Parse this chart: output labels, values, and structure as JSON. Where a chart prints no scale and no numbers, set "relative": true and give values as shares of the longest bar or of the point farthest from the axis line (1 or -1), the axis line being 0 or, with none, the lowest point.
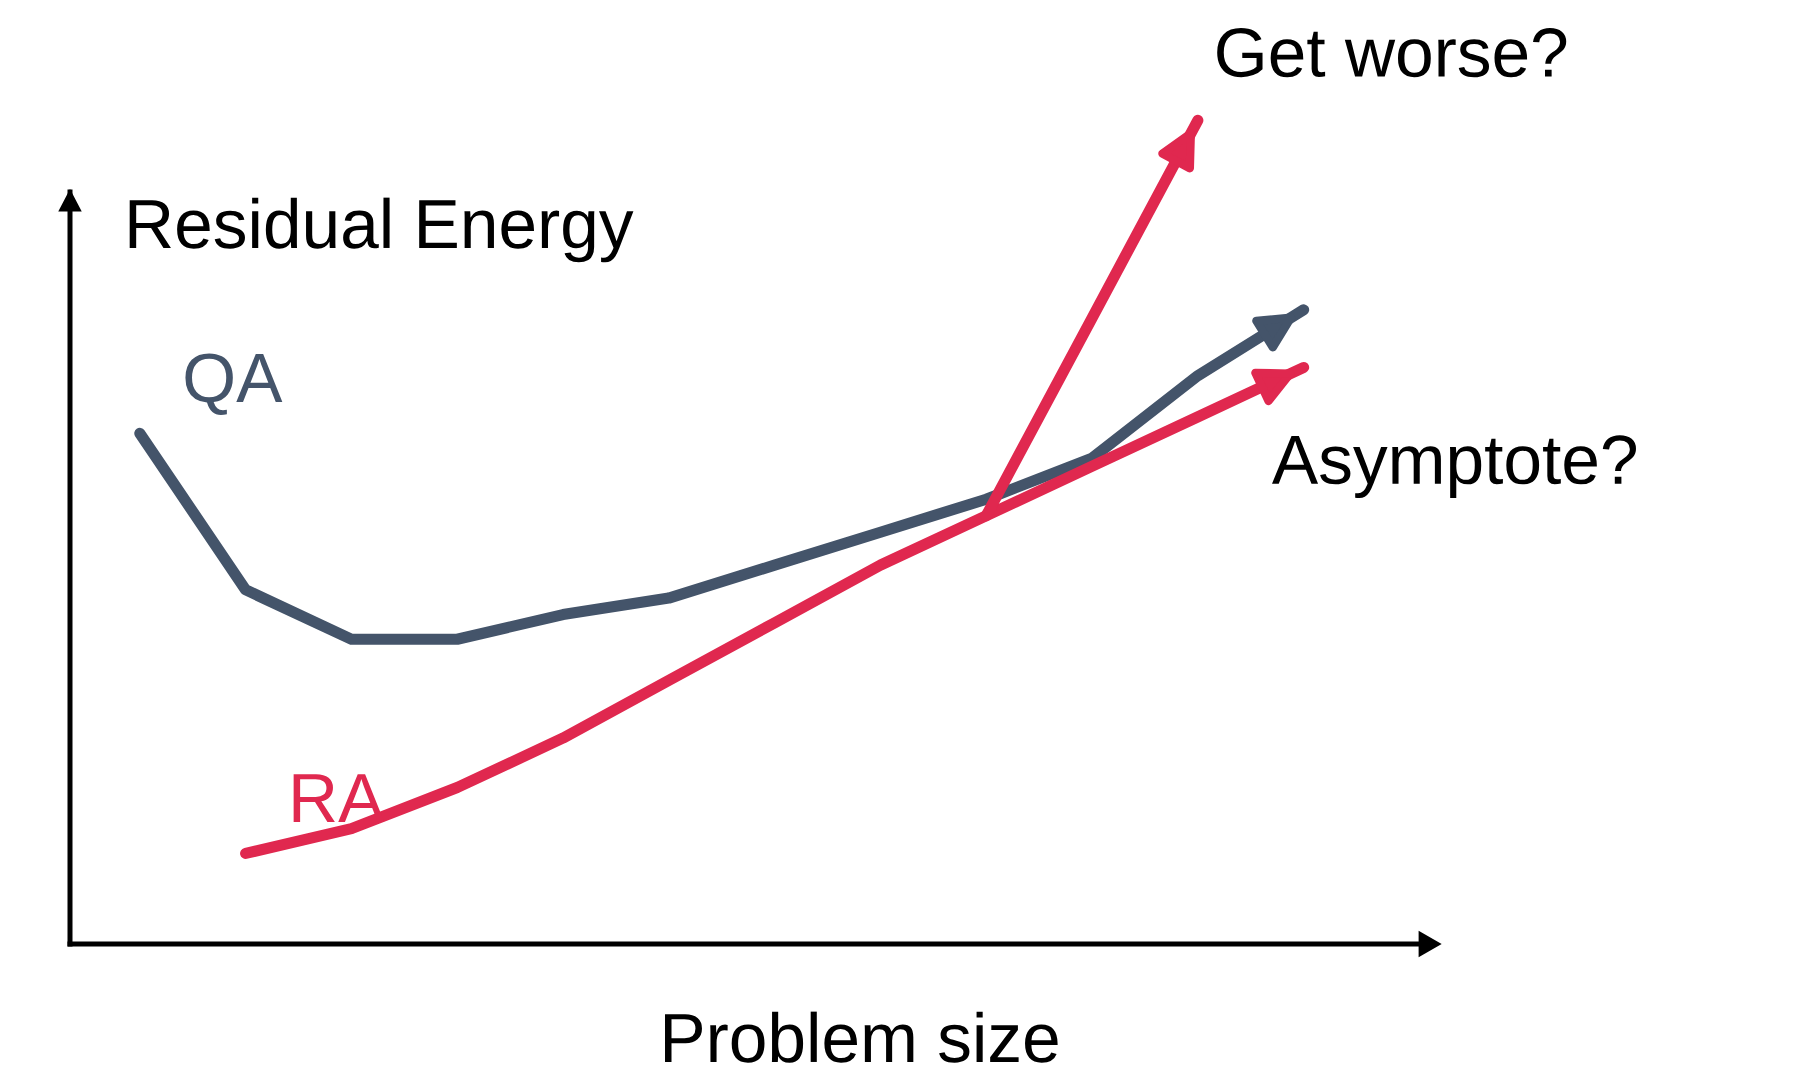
{
  "chart_data": {
    "type": "line",
    "relative": true,
    "xlabel": "Problem size",
    "ylabel": "Residual Energy",
    "categories": [
      null,
      null,
      null,
      null,
      null,
      null,
      null,
      null,
      null,
      null,
      null,
      null
    ],
    "series": [
      {
        "name": "QA",
        "color": "#44546a",
        "values": [
          0.62,
          0.43,
          0.37,
          0.37,
          0.4,
          0.42,
          0.46,
          0.5,
          0.54,
          0.59,
          0.69,
          0.77
        ]
      },
      {
        "name": "RA",
        "color": "#e0284f",
        "values": [
          null,
          0.11,
          0.14,
          0.19,
          0.25,
          0.32,
          0.39,
          0.46,
          0.52,
          0.58,
          0.64,
          0.7
        ]
      },
      {
        "name": "Get worse?",
        "color": "#e0284f",
        "values": [
          null,
          null,
          null,
          null,
          null,
          null,
          null,
          null,
          0.52,
          0.76,
          1.0,
          null
        ]
      }
    ],
    "annotations": [
      "Asymptote?"
    ],
    "grid": false
  }
}
